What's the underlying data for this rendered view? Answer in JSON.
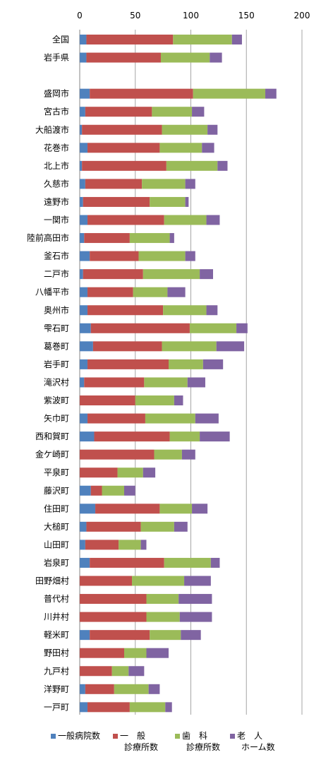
{
  "chart_data": {
    "type": "bar",
    "orientation": "horizontal",
    "stacked": true,
    "xlim": [
      0,
      200
    ],
    "xticks": [
      0,
      50,
      100,
      150,
      200
    ],
    "grid": "vertical",
    "legend_position": "bottom",
    "categories": [
      "全国",
      "岩手県",
      "",
      "盛岡市",
      "宮古市",
      "大船渡市",
      "花巻市",
      "北上市",
      "久慈市",
      "遠野市",
      "一関市",
      "陸前高田市",
      "釜石市",
      "二戸市",
      "八幡平市",
      "奥州市",
      "雫石町",
      "葛巻町",
      "岩手町",
      "滝沢村",
      "紫波町",
      "矢巾町",
      "西和賀町",
      "金ケ崎町",
      "平泉町",
      "藤沢町",
      "住田町",
      "大槌町",
      "山田町",
      "岩泉町",
      "田野畑村",
      "普代村",
      "川井村",
      "軽米町",
      "野田村",
      "九戸村",
      "洋野町",
      "一戸町"
    ],
    "series": [
      {
        "name": "一般病院数",
        "legend_lines": [
          "一般病院数"
        ],
        "color": "#4f81bd",
        "values": [
          6,
          6,
          null,
          9,
          5,
          2,
          7,
          2,
          5,
          3,
          7,
          4,
          9,
          3,
          7,
          7,
          10,
          12,
          7,
          4,
          0,
          7,
          13,
          0,
          0,
          10,
          14,
          6,
          5,
          9,
          0,
          0,
          0,
          9,
          0,
          0,
          5,
          7
        ]
      },
      {
        "name": "一般診療所数",
        "legend_lines": [
          "一　般",
          "診療所数"
        ],
        "color": "#c0504d",
        "values": [
          78,
          67,
          null,
          93,
          60,
          72,
          65,
          76,
          51,
          60,
          69,
          41,
          44,
          54,
          41,
          68,
          89,
          62,
          73,
          54,
          50,
          52,
          68,
          67,
          34,
          10,
          58,
          49,
          30,
          67,
          47,
          60,
          60,
          54,
          40,
          29,
          26,
          38
        ]
      },
      {
        "name": "歯科診療所数",
        "legend_lines": [
          "歯　科",
          "診療所数"
        ],
        "color": "#9bbb59",
        "values": [
          53,
          44,
          null,
          65,
          36,
          41,
          38,
          46,
          39,
          32,
          38,
          36,
          42,
          51,
          31,
          39,
          42,
          49,
          31,
          39,
          35,
          45,
          27,
          25,
          23,
          20,
          29,
          30,
          20,
          42,
          47,
          29,
          30,
          28,
          20,
          15,
          31,
          32
        ]
      },
      {
        "name": "老人ホーム数",
        "legend_lines": [
          "老　人",
          "ホーム数"
        ],
        "color": "#8064a2",
        "values": [
          9,
          11,
          null,
          10,
          11,
          9,
          11,
          9,
          9,
          3,
          12,
          4,
          9,
          12,
          16,
          10,
          10,
          25,
          18,
          16,
          8,
          21,
          27,
          12,
          11,
          10,
          14,
          12,
          5,
          8,
          24,
          30,
          29,
          18,
          20,
          14,
          10,
          6
        ]
      }
    ]
  }
}
